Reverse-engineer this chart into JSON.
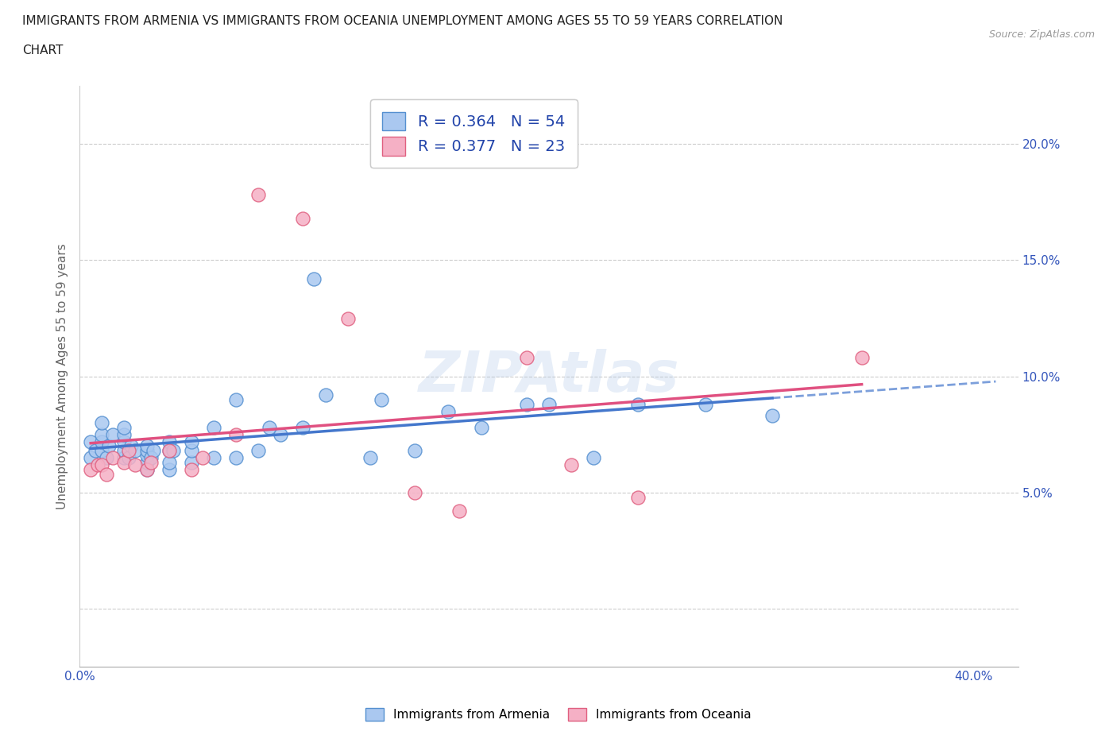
{
  "title_line1": "IMMIGRANTS FROM ARMENIA VS IMMIGRANTS FROM OCEANIA UNEMPLOYMENT AMONG AGES 55 TO 59 YEARS CORRELATION",
  "title_line2": "CHART",
  "source": "Source: ZipAtlas.com",
  "ylabel": "Unemployment Among Ages 55 to 59 years",
  "xlim": [
    0.0,
    0.42
  ],
  "ylim": [
    -0.025,
    0.225
  ],
  "xticks": [
    0.0,
    0.05,
    0.1,
    0.15,
    0.2,
    0.25,
    0.3,
    0.35,
    0.4
  ],
  "xticklabels": [
    "0.0%",
    "",
    "",
    "",
    "",
    "",
    "",
    "",
    "40.0%"
  ],
  "yticks": [
    0.0,
    0.05,
    0.1,
    0.15,
    0.2
  ],
  "yticklabels": [
    "",
    "5.0%",
    "10.0%",
    "15.0%",
    "20.0%"
  ],
  "armenia_color": "#aac8f0",
  "armenia_edge": "#5590d0",
  "oceania_color": "#f5b0c5",
  "oceania_edge": "#e06080",
  "armenia_line_color": "#4477cc",
  "oceania_line_color": "#e05080",
  "armenia_R": 0.364,
  "armenia_N": 54,
  "oceania_R": 0.377,
  "oceania_N": 23,
  "watermark": "ZIPAtlas",
  "armenia_scatter_x": [
    0.005,
    0.005,
    0.007,
    0.01,
    0.01,
    0.01,
    0.01,
    0.012,
    0.013,
    0.015,
    0.02,
    0.02,
    0.02,
    0.02,
    0.02,
    0.022,
    0.023,
    0.025,
    0.03,
    0.03,
    0.03,
    0.03,
    0.03,
    0.032,
    0.033,
    0.04,
    0.04,
    0.04,
    0.04,
    0.042,
    0.05,
    0.05,
    0.05,
    0.06,
    0.06,
    0.07,
    0.07,
    0.08,
    0.085,
    0.09,
    0.1,
    0.105,
    0.11,
    0.13,
    0.135,
    0.15,
    0.165,
    0.18,
    0.2,
    0.21,
    0.23,
    0.25,
    0.28,
    0.31
  ],
  "armenia_scatter_y": [
    0.065,
    0.072,
    0.068,
    0.068,
    0.072,
    0.075,
    0.08,
    0.065,
    0.07,
    0.075,
    0.065,
    0.068,
    0.072,
    0.075,
    0.078,
    0.065,
    0.07,
    0.068,
    0.06,
    0.063,
    0.066,
    0.068,
    0.07,
    0.065,
    0.068,
    0.06,
    0.063,
    0.068,
    0.072,
    0.068,
    0.063,
    0.068,
    0.072,
    0.065,
    0.078,
    0.065,
    0.09,
    0.068,
    0.078,
    0.075,
    0.078,
    0.142,
    0.092,
    0.065,
    0.09,
    0.068,
    0.085,
    0.078,
    0.088,
    0.088,
    0.065,
    0.088,
    0.088,
    0.083
  ],
  "oceania_scatter_x": [
    0.005,
    0.008,
    0.01,
    0.012,
    0.015,
    0.02,
    0.022,
    0.025,
    0.03,
    0.032,
    0.04,
    0.05,
    0.055,
    0.07,
    0.08,
    0.1,
    0.12,
    0.15,
    0.17,
    0.2,
    0.22,
    0.25,
    0.35
  ],
  "oceania_scatter_y": [
    0.06,
    0.062,
    0.062,
    0.058,
    0.065,
    0.063,
    0.068,
    0.062,
    0.06,
    0.063,
    0.068,
    0.06,
    0.065,
    0.075,
    0.178,
    0.168,
    0.125,
    0.05,
    0.042,
    0.108,
    0.062,
    0.048,
    0.108
  ]
}
